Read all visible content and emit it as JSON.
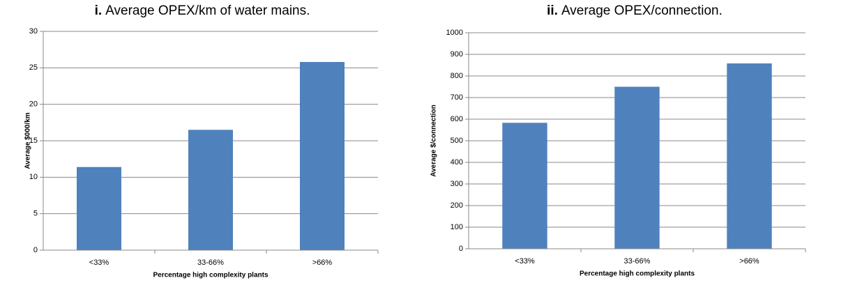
{
  "chart_data": [
    {
      "type": "bar",
      "title_label": "i.",
      "title": "Average OPEX/km of water mains.",
      "categories": [
        "<33%",
        "33-66%",
        ">66%"
      ],
      "values": [
        11.4,
        16.5,
        25.8
      ],
      "color": "#4f81bd",
      "xlabel": "Percentage high complexity plants",
      "ylabel": "Average $000/km",
      "ylim": [
        0,
        30
      ],
      "yticks": [
        0,
        5,
        10,
        15,
        20,
        25,
        30
      ],
      "grid": true
    },
    {
      "type": "bar",
      "title_label": "ii.",
      "title": "Average OPEX/connection.",
      "categories": [
        "<33%",
        "33-66%",
        ">66%"
      ],
      "values": [
        583,
        750,
        858
      ],
      "color": "#4f81bd",
      "xlabel": "Percentage high complexity plants",
      "ylabel": "Average $/connection",
      "ylim": [
        0,
        1000
      ],
      "yticks": [
        0,
        100,
        200,
        300,
        400,
        500,
        600,
        700,
        800,
        900,
        1000
      ],
      "grid": true
    }
  ]
}
